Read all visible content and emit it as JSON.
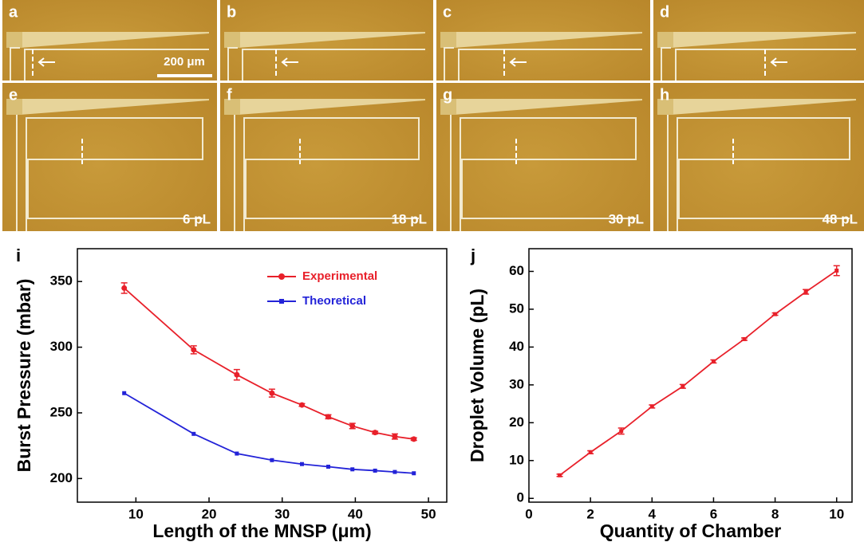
{
  "micrographs": [
    {
      "label": "a"
    },
    {
      "label": "b"
    },
    {
      "label": "c"
    },
    {
      "label": "d"
    },
    {
      "label": "e",
      "volume": "6 pL"
    },
    {
      "label": "f",
      "volume": "18 pL"
    },
    {
      "label": "g",
      "volume": "30 pL"
    },
    {
      "label": "h",
      "volume": "48 pL"
    }
  ],
  "scale_bar": "200 μm",
  "chart_data": [
    {
      "type": "line",
      "panel": "i",
      "xlabel": "Length of the MNSP (μm)",
      "ylabel": "Burst Pressure (mbar)",
      "x": [
        8.4,
        17.9,
        23.8,
        28.6,
        32.7,
        36.3,
        39.6,
        42.7,
        45.4,
        48
      ],
      "series": [
        {
          "name": "Experimental",
          "color": "#e8202a",
          "marker": "circle",
          "values": [
            345,
            298,
            279,
            265,
            256,
            247,
            240,
            235,
            232,
            230
          ],
          "errors": [
            4,
            3,
            4,
            3,
            1,
            1.5,
            2,
            1,
            2,
            1
          ]
        },
        {
          "name": "Theoretical",
          "color": "#2323d8",
          "marker": "square",
          "values": [
            265,
            234,
            219,
            214,
            211,
            209,
            207,
            206,
            205,
            204
          ]
        }
      ],
      "xlim": [
        2,
        52.5
      ],
      "ylim": [
        182,
        375
      ],
      "xticks": [
        10,
        20,
        30,
        40,
        50
      ],
      "yticks": [
        200,
        250,
        300,
        350
      ],
      "legend": "upper right"
    },
    {
      "type": "line",
      "panel": "j",
      "xlabel": "Quantity of Chamber",
      "ylabel": "Droplet Volume (pL)",
      "x": [
        1,
        2,
        3,
        4,
        5,
        6,
        7,
        8,
        9,
        10
      ],
      "series": [
        {
          "color": "#e8202a",
          "marker": "square",
          "values": [
            6.1,
            12.2,
            17.8,
            24.3,
            29.6,
            36.2,
            42.1,
            48.7,
            54.6,
            60.2
          ],
          "errors": [
            0.3,
            0.4,
            0.8,
            0.4,
            0.5,
            0.4,
            0.3,
            0.3,
            0.6,
            1.3
          ]
        }
      ],
      "xlim": [
        0,
        10.5
      ],
      "ylim": [
        -1,
        66
      ],
      "xticks": [
        0,
        2,
        4,
        6,
        8,
        10
      ],
      "yticks": [
        0,
        10,
        20,
        30,
        40,
        50,
        60
      ]
    }
  ]
}
